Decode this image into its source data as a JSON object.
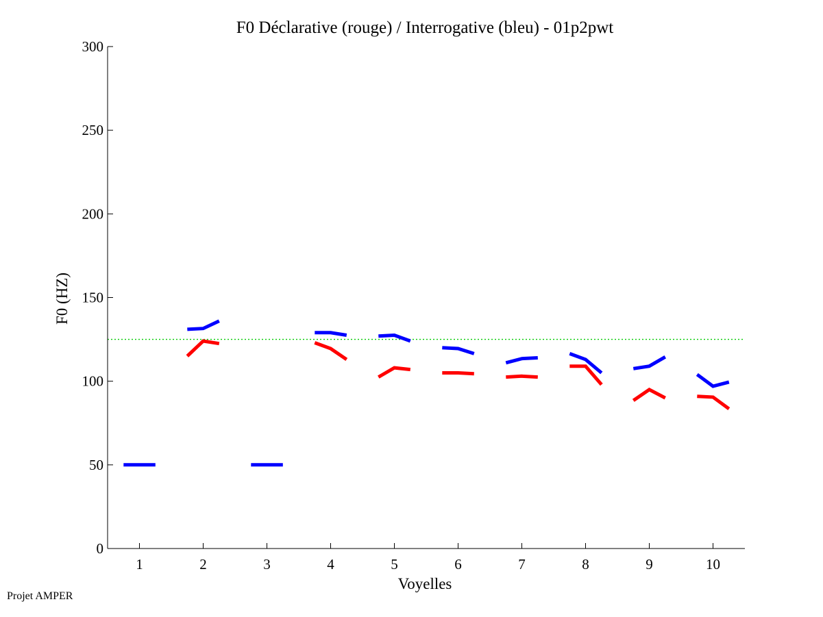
{
  "chart_data": {
    "type": "line",
    "title": "F0 Déclarative (rouge) / Interrogative (bleu) - 01p2pwt",
    "xlabel": "Voyelles",
    "ylabel": "F0 (HZ)",
    "xlim": [
      0.5,
      10.5
    ],
    "ylim": [
      0,
      300
    ],
    "x_ticks": [
      1,
      2,
      3,
      4,
      5,
      6,
      7,
      8,
      9,
      10
    ],
    "y_ticks": [
      0,
      50,
      100,
      150,
      200,
      250,
      300
    ],
    "reference_line": {
      "y": 125,
      "color": "#00cc00",
      "style": "dotted"
    },
    "series": [
      {
        "name": "Interrogative (bleu)",
        "color": "#0000ff",
        "segments": [
          {
            "vowel": 1,
            "x": [
              0.75,
              1.0,
              1.25
            ],
            "y": [
              50,
              50,
              50
            ]
          },
          {
            "vowel": 2,
            "x": [
              1.75,
              2.0,
              2.25
            ],
            "y": [
              131,
              131.5,
              136
            ]
          },
          {
            "vowel": 3,
            "x": [
              2.75,
              3.0,
              3.25
            ],
            "y": [
              50,
              50,
              50
            ]
          },
          {
            "vowel": 4,
            "x": [
              3.75,
              4.0,
              4.25
            ],
            "y": [
              129,
              129,
              127.5
            ]
          },
          {
            "vowel": 5,
            "x": [
              4.75,
              5.0,
              5.25
            ],
            "y": [
              127,
              127.5,
              124
            ]
          },
          {
            "vowel": 6,
            "x": [
              5.75,
              6.0,
              6.25
            ],
            "y": [
              120,
              119.5,
              116.5
            ]
          },
          {
            "vowel": 7,
            "x": [
              6.75,
              7.0,
              7.25
            ],
            "y": [
              111,
              113.5,
              114
            ]
          },
          {
            "vowel": 8,
            "x": [
              7.75,
              8.0,
              8.25
            ],
            "y": [
              116.5,
              113,
              105
            ]
          },
          {
            "vowel": 9,
            "x": [
              8.75,
              9.0,
              9.25
            ],
            "y": [
              107.5,
              109,
              114.5
            ]
          },
          {
            "vowel": 10,
            "x": [
              9.75,
              10.0,
              10.25
            ],
            "y": [
              104,
              97,
              99.5
            ]
          }
        ]
      },
      {
        "name": "Déclarative (rouge)",
        "color": "#ff0000",
        "segments": [
          {
            "vowel": 2,
            "x": [
              1.75,
              2.0,
              2.25
            ],
            "y": [
              115,
              124,
              122.5
            ]
          },
          {
            "vowel": 4,
            "x": [
              3.75,
              4.0,
              4.25
            ],
            "y": [
              123,
              119.5,
              113
            ]
          },
          {
            "vowel": 5,
            "x": [
              4.75,
              5.0,
              5.25
            ],
            "y": [
              102.5,
              108,
              107
            ]
          },
          {
            "vowel": 6,
            "x": [
              5.75,
              6.0,
              6.25
            ],
            "y": [
              105,
              105,
              104.5
            ]
          },
          {
            "vowel": 7,
            "x": [
              6.75,
              7.0,
              7.25
            ],
            "y": [
              102.5,
              103,
              102.5
            ]
          },
          {
            "vowel": 8,
            "x": [
              7.75,
              8.0,
              8.25
            ],
            "y": [
              109,
              109,
              98
            ]
          },
          {
            "vowel": 9,
            "x": [
              8.75,
              9.0,
              9.25
            ],
            "y": [
              88.5,
              95,
              90
            ]
          },
          {
            "vowel": 10,
            "x": [
              9.75,
              10.0,
              10.25
            ],
            "y": [
              91,
              90.5,
              83.5
            ]
          }
        ]
      }
    ]
  },
  "footer": {
    "text": "Projet AMPER"
  }
}
